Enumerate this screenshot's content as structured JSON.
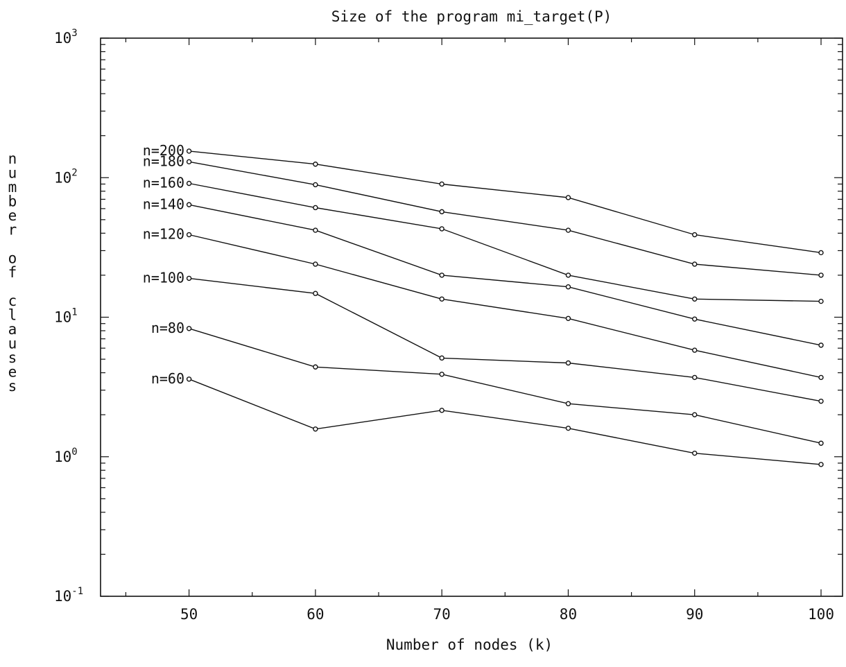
{
  "chart_data": {
    "type": "line",
    "title": "Size of the program mi_target(P)",
    "xlabel": "Number of nodes (k)",
    "ylabel": "number of clauses",
    "yscale": "log",
    "xlim": [
      43,
      101.7
    ],
    "ylim": [
      0.1,
      1000
    ],
    "x": [
      50,
      60,
      70,
      80,
      90,
      100
    ],
    "x_ticks": [
      "50",
      "60",
      "70",
      "80",
      "90",
      "100"
    ],
    "y_ticks": [
      {
        "base": "10",
        "exp": "3",
        "value": 1000
      },
      {
        "base": "10",
        "exp": "2",
        "value": 100
      },
      {
        "base": "10",
        "exp": "1",
        "value": 10
      },
      {
        "base": "10",
        "exp": "0",
        "value": 1
      },
      {
        "base": "10",
        "exp": "-1",
        "value": 0.1
      }
    ],
    "grid": false,
    "legend": "inline labels at left",
    "series": [
      {
        "name": "n=200",
        "values": [
          155,
          125,
          90,
          72,
          39,
          29
        ]
      },
      {
        "name": "n=180",
        "values": [
          130,
          89,
          57,
          42,
          24,
          20
        ]
      },
      {
        "name": "n=160",
        "values": [
          91,
          61,
          43,
          20,
          13.5,
          13
        ]
      },
      {
        "name": "n=140",
        "values": [
          64,
          42,
          20,
          16.5,
          9.7,
          6.3
        ]
      },
      {
        "name": "n=120",
        "values": [
          39,
          24,
          13.5,
          9.8,
          5.8,
          3.7
        ]
      },
      {
        "name": "n=100",
        "values": [
          19,
          14.8,
          5.1,
          4.7,
          3.7,
          2.5
        ]
      },
      {
        "name": "n=80",
        "values": [
          8.3,
          4.4,
          3.9,
          2.4,
          2.0,
          1.25
        ]
      },
      {
        "name": "n=60",
        "values": [
          3.6,
          1.58,
          2.15,
          1.6,
          1.06,
          0.88
        ]
      }
    ]
  }
}
